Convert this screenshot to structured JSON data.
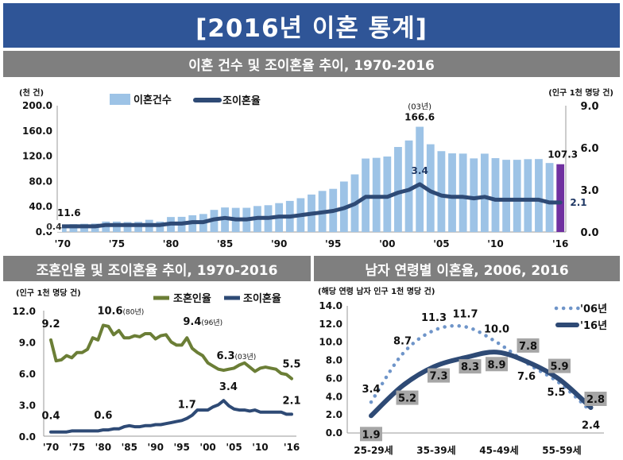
{
  "header": {
    "title": "[2016년 이혼 통계]",
    "section1_title": "이혼 건수 및 조이혼율 추이, 1970-2016",
    "section2_title": "조혼인율 및 조이혼율 추이, 1970-2016",
    "section3_title": "남자 연령별 이혼율, 2006, 2016"
  },
  "colors": {
    "title_bg": "#2f5597",
    "section_bg": "#7f7f7f",
    "bar": "#9dc3e6",
    "bar_highlight": "#7030a0",
    "line": "#2e4a75",
    "marriage": "#6b7e36",
    "dotted": "#6f95c9",
    "label_box": "#a6a6a6"
  },
  "chart_data": [
    {
      "type": "bar",
      "left_unit": "(천 건)",
      "right_unit": "(인구 1천 명당 건)",
      "ylim_left": [
        0,
        200
      ],
      "ylim_right": [
        0,
        9
      ],
      "left_ticks": [
        "200.0",
        "160.0",
        "120.0",
        "80.0",
        "40.0",
        "0.0"
      ],
      "right_ticks": [
        "9.0",
        "6.0",
        "3.0",
        "0.0"
      ],
      "x_tick_labels": [
        "'70",
        "'75",
        "'80",
        "'85",
        "'90",
        "'95",
        "'00",
        "'05",
        "'10",
        "'16"
      ],
      "x": [
        1970,
        1971,
        1972,
        1973,
        1974,
        1975,
        1976,
        1977,
        1978,
        1979,
        1980,
        1981,
        1982,
        1983,
        1984,
        1985,
        1986,
        1987,
        1988,
        1989,
        1990,
        1991,
        1992,
        1993,
        1994,
        1995,
        1996,
        1997,
        1998,
        1999,
        2000,
        2001,
        2002,
        2003,
        2004,
        2005,
        2006,
        2007,
        2008,
        2009,
        2010,
        2011,
        2012,
        2013,
        2014,
        2015,
        2016
      ],
      "series": [
        {
          "name": "이혼건수",
          "axis": "left",
          "values": [
            11.6,
            12.4,
            13.0,
            13.3,
            16.5,
            16.5,
            15.8,
            16.1,
            19.3,
            16.5,
            23.7,
            24.0,
            26.5,
            28.5,
            35.0,
            38.8,
            38.2,
            38.3,
            41.1,
            42.4,
            45.7,
            49.2,
            53.5,
            59.3,
            65.0,
            68.3,
            79.9,
            91.2,
            116.3,
            117.4,
            119.5,
            134.6,
            144.9,
            166.6,
            138.9,
            128.0,
            124.5,
            124.1,
            116.5,
            124.0,
            116.9,
            114.3,
            114.3,
            115.3,
            115.5,
            109.2,
            107.3
          ]
        },
        {
          "name": "조이혼율",
          "axis": "right",
          "values": [
            0.4,
            0.4,
            0.4,
            0.4,
            0.5,
            0.5,
            0.5,
            0.5,
            0.5,
            0.5,
            0.6,
            0.6,
            0.7,
            0.7,
            0.9,
            1.0,
            0.9,
            0.9,
            1.0,
            1.0,
            1.1,
            1.1,
            1.2,
            1.3,
            1.4,
            1.5,
            1.7,
            2.0,
            2.5,
            2.5,
            2.5,
            2.8,
            3.0,
            3.4,
            2.9,
            2.6,
            2.5,
            2.5,
            2.4,
            2.5,
            2.3,
            2.3,
            2.3,
            2.3,
            2.3,
            2.1,
            2.1
          ]
        }
      ],
      "annotations": [
        {
          "text": "11.6",
          "x": 1970,
          "axis": "left",
          "y": 11.6
        },
        {
          "text": "0.4",
          "x": 1970,
          "axis": "right",
          "y": 0.4
        },
        {
          "text": "(03년)",
          "x": 2003,
          "axis": "left",
          "y": 166.6
        },
        {
          "text": "166.6",
          "x": 2003,
          "axis": "left",
          "y": 166.6
        },
        {
          "text": "3.4",
          "x": 2003,
          "axis": "right",
          "y": 3.4
        },
        {
          "text": "107.3",
          "x": 2016,
          "axis": "left",
          "y": 107.3
        },
        {
          "text": "2.1",
          "x": 2016,
          "axis": "right",
          "y": 2.1
        }
      ]
    },
    {
      "type": "line",
      "unit": "(인구 1천 명당 건)",
      "ylim": [
        0,
        12
      ],
      "y_ticks": [
        "12.0",
        "9.0",
        "6.0",
        "3.0",
        "0.0"
      ],
      "x_tick_labels": [
        "'70",
        "'75",
        "'80",
        "'85",
        "'90",
        "'95",
        "'00",
        "'05",
        "'10",
        "'16"
      ],
      "x": [
        1970,
        1971,
        1972,
        1973,
        1974,
        1975,
        1976,
        1977,
        1978,
        1979,
        1980,
        1981,
        1982,
        1983,
        1984,
        1985,
        1986,
        1987,
        1988,
        1989,
        1990,
        1991,
        1992,
        1993,
        1994,
        1995,
        1996,
        1997,
        1998,
        1999,
        2000,
        2001,
        2002,
        2003,
        2004,
        2005,
        2006,
        2007,
        2008,
        2009,
        2010,
        2011,
        2012,
        2013,
        2014,
        2015,
        2016
      ],
      "series": [
        {
          "name": "조혼인율",
          "values": [
            9.2,
            7.2,
            7.3,
            7.7,
            7.5,
            8.0,
            8.0,
            8.3,
            9.4,
            9.2,
            10.6,
            10.5,
            9.7,
            10.1,
            9.4,
            9.4,
            9.6,
            9.5,
            9.8,
            9.8,
            9.3,
            9.6,
            9.7,
            9.0,
            8.7,
            8.7,
            9.4,
            8.4,
            8.0,
            7.7,
            7.0,
            6.7,
            6.4,
            6.3,
            6.4,
            6.5,
            6.8,
            7.0,
            6.6,
            6.2,
            6.5,
            6.6,
            6.5,
            6.4,
            6.0,
            5.9,
            5.5
          ]
        },
        {
          "name": "조이혼율",
          "values": [
            0.4,
            0.4,
            0.4,
            0.4,
            0.5,
            0.5,
            0.5,
            0.5,
            0.5,
            0.5,
            0.6,
            0.6,
            0.7,
            0.7,
            0.9,
            1.0,
            0.9,
            0.9,
            1.0,
            1.0,
            1.1,
            1.1,
            1.2,
            1.3,
            1.4,
            1.5,
            1.7,
            2.0,
            2.5,
            2.5,
            2.5,
            2.8,
            3.0,
            3.4,
            2.9,
            2.6,
            2.5,
            2.5,
            2.4,
            2.5,
            2.3,
            2.3,
            2.3,
            2.3,
            2.3,
            2.1,
            2.1
          ]
        }
      ],
      "annotations": [
        {
          "text": "9.2",
          "series": 0,
          "x": 1970
        },
        {
          "text": "10.6(80년)",
          "series": 0,
          "x": 1980
        },
        {
          "text": "9.4(96년)",
          "series": 0,
          "x": 1996
        },
        {
          "text": "6.3(03년)",
          "series": 0,
          "x": 2003
        },
        {
          "text": "5.5",
          "series": 0,
          "x": 2016
        },
        {
          "text": "0.4",
          "series": 1,
          "x": 1970
        },
        {
          "text": "0.6",
          "series": 1,
          "x": 1980
        },
        {
          "text": "1.7",
          "series": 1,
          "x": 1996
        },
        {
          "text": "3.4",
          "series": 1,
          "x": 2003
        },
        {
          "text": "2.1",
          "series": 1,
          "x": 2016
        }
      ]
    },
    {
      "type": "line",
      "unit": "(해당 연령 남자 인구 1천 명당 건)",
      "ylim": [
        0,
        14
      ],
      "y_ticks": [
        "14.0",
        "12.0",
        "10.0",
        "8.0",
        "6.0",
        "4.0",
        "2.0",
        "0.0"
      ],
      "x_tick_labels": [
        "25-29세",
        "35-39세",
        "45-49세",
        "55-59세"
      ],
      "series": [
        {
          "name": "'06년",
          "style": "dotted",
          "values": [
            3.4,
            8.7,
            11.3,
            11.7,
            10.0,
            7.6,
            5.5,
            2.4
          ]
        },
        {
          "name": "'16년",
          "style": "solid",
          "values": [
            1.9,
            5.2,
            7.3,
            8.3,
            8.9,
            7.8,
            5.9,
            2.8
          ]
        }
      ],
      "labels_06": [
        "3.4",
        "8.7",
        "11.3",
        "11.7",
        "10.0",
        "7.6",
        "5.5",
        "2.4"
      ],
      "labels_16": [
        "1.9",
        "5.2",
        "7.3",
        "8.3",
        "8.9",
        "7.8",
        "5.9",
        "2.8"
      ]
    }
  ]
}
